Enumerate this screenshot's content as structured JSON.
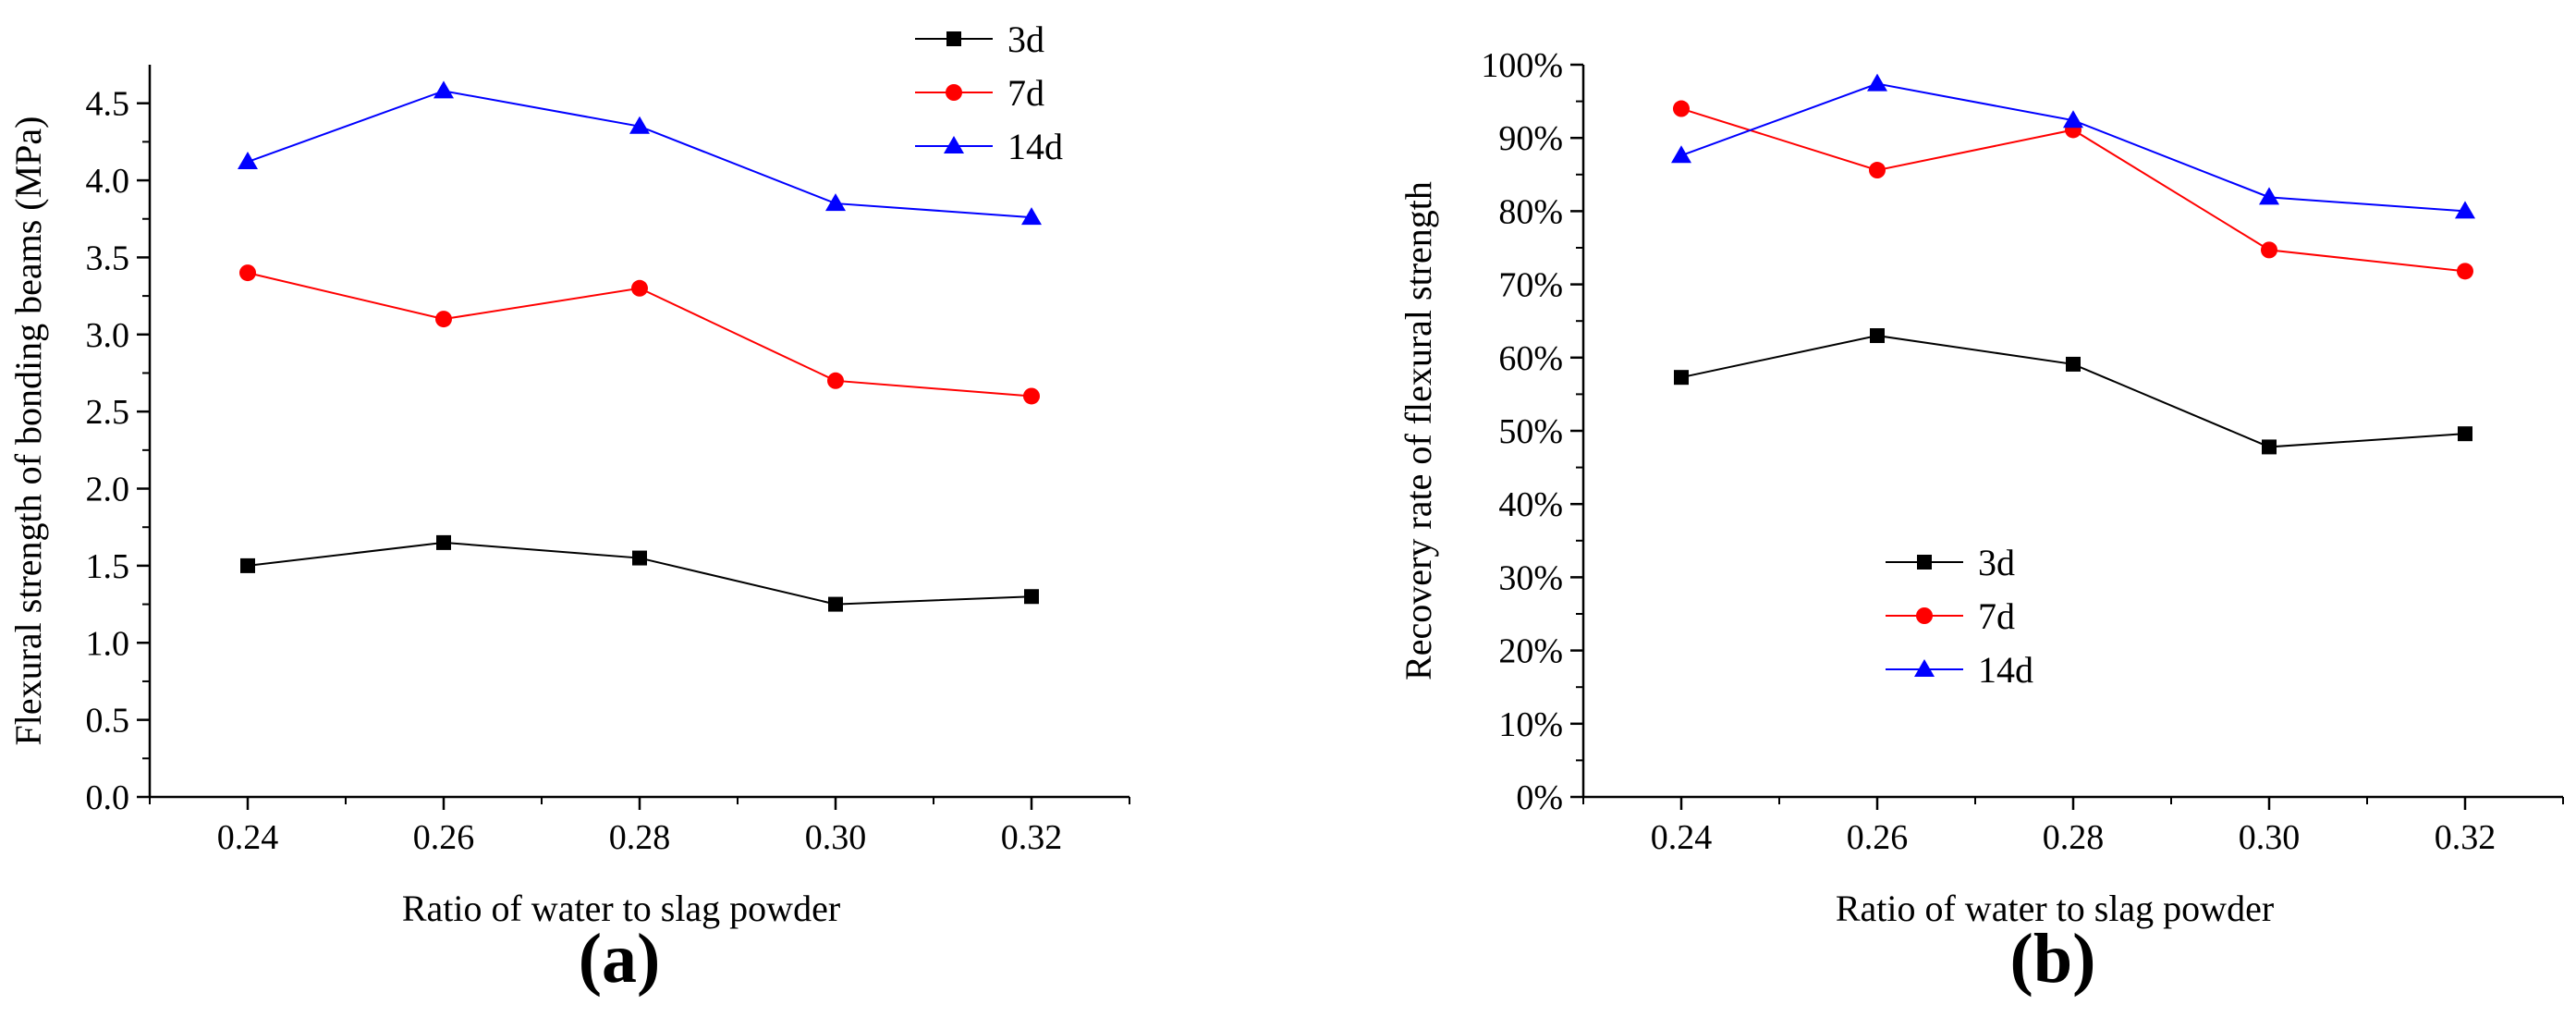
{
  "chart_data": [
    {
      "type": "line",
      "panel_label": "(a)",
      "xlabel": "Ratio of water to slag powder",
      "ylabel": "Flexural strength of bonding beams (MPa)",
      "x": [
        0.24,
        0.26,
        0.28,
        0.3,
        0.32
      ],
      "x_tick_labels": [
        "0.24",
        "0.26",
        "0.28",
        "0.30",
        "0.32"
      ],
      "xlim": [
        0.23,
        0.33
      ],
      "ylim": [
        0,
        4.75
      ],
      "y_ticks": [
        0,
        0.5,
        1.0,
        1.5,
        2.0,
        2.5,
        3.0,
        3.5,
        4.0,
        4.5
      ],
      "y_tick_labels": [
        "0.0",
        "0.5",
        "1.0",
        "1.5",
        "2.0",
        "2.5",
        "3.0",
        "3.5",
        "4.0",
        "4.5"
      ],
      "grid": false,
      "legend_position": "top-right",
      "series": [
        {
          "name": "3d",
          "color": "#000000",
          "marker": "square",
          "values": [
            1.5,
            1.65,
            1.55,
            1.25,
            1.3
          ]
        },
        {
          "name": "7d",
          "color": "#ff0000",
          "marker": "circle",
          "values": [
            3.4,
            3.1,
            3.3,
            2.7,
            2.6
          ]
        },
        {
          "name": "14d",
          "color": "#0000ff",
          "marker": "triangle",
          "values": [
            4.12,
            4.58,
            4.35,
            3.85,
            3.76
          ]
        }
      ]
    },
    {
      "type": "line",
      "panel_label": "(b)",
      "xlabel": "Ratio of water to slag powder",
      "ylabel": "Recovery rate of flexural strength",
      "x": [
        0.24,
        0.26,
        0.28,
        0.3,
        0.32
      ],
      "x_tick_labels": [
        "0.24",
        "0.26",
        "0.28",
        "0.30",
        "0.32"
      ],
      "xlim": [
        0.23,
        0.33
      ],
      "ylim": [
        0,
        100
      ],
      "y_ticks": [
        0,
        10,
        20,
        30,
        40,
        50,
        60,
        70,
        80,
        90,
        100
      ],
      "y_tick_labels": [
        "0%",
        "10%",
        "20%",
        "30%",
        "40%",
        "50%",
        "60%",
        "70%",
        "80%",
        "90%",
        "100%"
      ],
      "grid": false,
      "legend_position": "middle-left",
      "series": [
        {
          "name": "3d",
          "color": "#000000",
          "marker": "square",
          "values": [
            57.3,
            63.0,
            59.1,
            47.8,
            49.6
          ]
        },
        {
          "name": "7d",
          "color": "#ff0000",
          "marker": "circle",
          "values": [
            94.0,
            85.6,
            91.1,
            74.7,
            71.8
          ]
        },
        {
          "name": "14d",
          "color": "#0000ff",
          "marker": "triangle",
          "values": [
            87.6,
            97.4,
            92.4,
            81.9,
            80.0
          ]
        }
      ]
    }
  ]
}
